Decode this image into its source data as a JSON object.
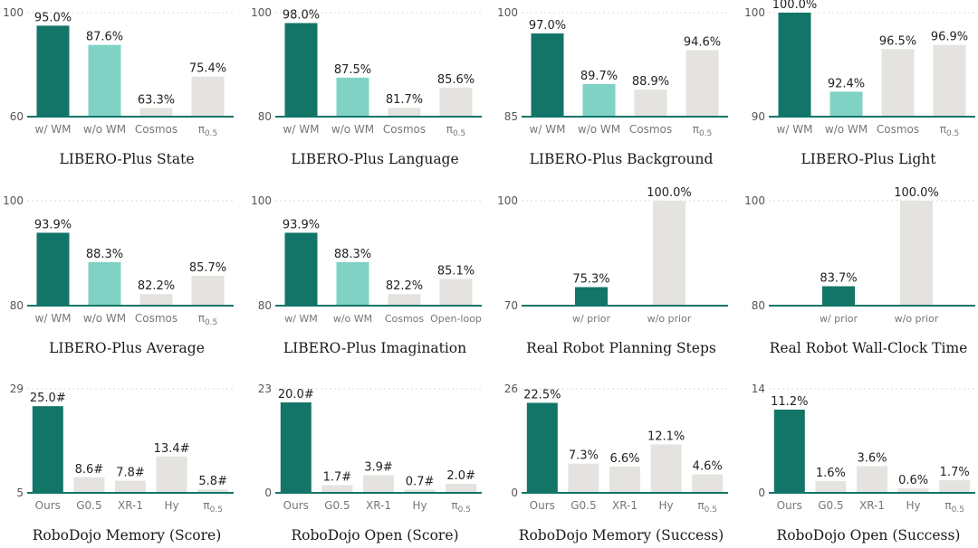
{
  "colors": {
    "ours": "#137567",
    "ablation": "#7fd2c4",
    "baseline": "#e4e3e0",
    "axis": "#137567",
    "gridline": "#d8d8d8"
  },
  "chart_data": [
    {
      "type": "bar",
      "title": "LIBERO-Plus State",
      "unit": "%",
      "ylim": [
        60,
        100
      ],
      "yticks": [
        "60",
        "100"
      ],
      "categories": [
        "w/ WM",
        "w/o WM",
        "Cosmos",
        "π0.5"
      ],
      "values": [
        95.0,
        87.6,
        63.3,
        75.4
      ],
      "labels": [
        "95.0%",
        "87.6%",
        "63.3%",
        "75.4%"
      ],
      "kinds": [
        "ours",
        "ablation",
        "baseline",
        "baseline"
      ]
    },
    {
      "type": "bar",
      "title": "LIBERO-Plus Language",
      "unit": "%",
      "ylim": [
        80,
        100
      ],
      "yticks": [
        "80",
        "100"
      ],
      "categories": [
        "w/ WM",
        "w/o WM",
        "Cosmos",
        "π0.5"
      ],
      "values": [
        98.0,
        87.5,
        81.7,
        85.6
      ],
      "labels": [
        "98.0%",
        "87.5%",
        "81.7%",
        "85.6%"
      ],
      "kinds": [
        "ours",
        "ablation",
        "baseline",
        "baseline"
      ]
    },
    {
      "type": "bar",
      "title": "LIBERO-Plus Background",
      "unit": "%",
      "ylim": [
        85,
        100
      ],
      "yticks": [
        "85",
        "100"
      ],
      "categories": [
        "w/ WM",
        "w/o WM",
        "Cosmos",
        "π0.5"
      ],
      "values": [
        97.0,
        89.7,
        88.9,
        94.6
      ],
      "labels": [
        "97.0%",
        "89.7%",
        "88.9%",
        "94.6%"
      ],
      "kinds": [
        "ours",
        "ablation",
        "baseline",
        "baseline"
      ]
    },
    {
      "type": "bar",
      "title": "LIBERO-Plus Light",
      "unit": "%",
      "ylim": [
        90,
        100
      ],
      "yticks": [
        "90",
        "100"
      ],
      "categories": [
        "w/ WM",
        "w/o WM",
        "Cosmos",
        "π0.5"
      ],
      "values": [
        100.0,
        92.4,
        96.5,
        96.9
      ],
      "labels": [
        "100.0%",
        "92.4%",
        "96.5%",
        "96.9%"
      ],
      "kinds": [
        "ours",
        "ablation",
        "baseline",
        "baseline"
      ]
    },
    {
      "type": "bar",
      "title": "LIBERO-Plus Average",
      "unit": "%",
      "ylim": [
        80,
        100
      ],
      "yticks": [
        "80",
        "100"
      ],
      "categories": [
        "w/ WM",
        "w/o WM",
        "Cosmos",
        "π0.5"
      ],
      "values": [
        93.9,
        88.3,
        82.2,
        85.7
      ],
      "labels": [
        "93.9%",
        "88.3%",
        "82.2%",
        "85.7%"
      ],
      "kinds": [
        "ours",
        "ablation",
        "baseline",
        "baseline"
      ]
    },
    {
      "type": "bar",
      "title": "LIBERO-Plus Imagination",
      "unit": "%",
      "ylim": [
        80,
        100
      ],
      "yticks": [
        "80",
        "100"
      ],
      "categories": [
        "w/ WM",
        "w/o WM",
        "Cosmos",
        "Open-loop"
      ],
      "values": [
        93.9,
        88.3,
        82.2,
        85.1
      ],
      "labels": [
        "93.9%",
        "88.3%",
        "82.2%",
        "85.1%"
      ],
      "kinds": [
        "ours",
        "ablation",
        "baseline",
        "baseline"
      ]
    },
    {
      "type": "bar",
      "title": "Real Robot Planning Steps",
      "unit": "%",
      "ylim": [
        70,
        100
      ],
      "yticks": [
        "70",
        "100"
      ],
      "categories": [
        "w/ prior",
        "w/o prior"
      ],
      "values": [
        75.3,
        100.0
      ],
      "labels": [
        "75.3%",
        "100.0%"
      ],
      "kinds": [
        "ours",
        "baseline"
      ]
    },
    {
      "type": "bar",
      "title": "Real Robot Wall-Clock Time",
      "unit": "%",
      "ylim": [
        80,
        100
      ],
      "yticks": [
        "80",
        "100"
      ],
      "categories": [
        "w/ prior",
        "w/o prior"
      ],
      "values": [
        83.7,
        100.0
      ],
      "labels": [
        "83.7%",
        "100.0%"
      ],
      "kinds": [
        "ours",
        "baseline"
      ]
    },
    {
      "type": "bar",
      "title": "RoboDojo Memory (Score)",
      "unit": "#",
      "ylim": [
        5,
        29
      ],
      "yticks": [
        "5",
        "29"
      ],
      "categories": [
        "Ours",
        "G0.5",
        "XR-1",
        "Hy",
        "π0.5"
      ],
      "values": [
        25.0,
        8.6,
        7.8,
        13.4,
        5.8
      ],
      "labels": [
        "25.0#",
        "8.6#",
        "7.8#",
        "13.4#",
        "5.8#"
      ],
      "kinds": [
        "ours",
        "baseline",
        "baseline",
        "baseline",
        "baseline"
      ]
    },
    {
      "type": "bar",
      "title": "RoboDojo Open (Score)",
      "unit": "#",
      "ylim": [
        0,
        23
      ],
      "yticks": [
        "0",
        "23"
      ],
      "categories": [
        "Ours",
        "G0.5",
        "XR-1",
        "Hy",
        "π0.5"
      ],
      "values": [
        20.0,
        1.7,
        3.9,
        0.7,
        2.0
      ],
      "labels": [
        "20.0#",
        "1.7#",
        "3.9#",
        "0.7#",
        "2.0#"
      ],
      "kinds": [
        "ours",
        "baseline",
        "baseline",
        "baseline",
        "baseline"
      ]
    },
    {
      "type": "bar",
      "title": "RoboDojo Memory (Success)",
      "unit": "%",
      "ylim": [
        0,
        26
      ],
      "yticks": [
        "0",
        "26"
      ],
      "categories": [
        "Ours",
        "G0.5",
        "XR-1",
        "Hy",
        "π0.5"
      ],
      "values": [
        22.5,
        7.3,
        6.6,
        12.1,
        4.6
      ],
      "labels": [
        "22.5%",
        "7.3%",
        "6.6%",
        "12.1%",
        "4.6%"
      ],
      "kinds": [
        "ours",
        "baseline",
        "baseline",
        "baseline",
        "baseline"
      ]
    },
    {
      "type": "bar",
      "title": "RoboDojo Open (Success)",
      "unit": "%",
      "ylim": [
        0,
        14
      ],
      "yticks": [
        "0",
        "14"
      ],
      "categories": [
        "Ours",
        "G0.5",
        "XR-1",
        "Hy",
        "π0.5"
      ],
      "values": [
        11.2,
        1.6,
        3.6,
        0.6,
        1.7
      ],
      "labels": [
        "11.2%",
        "1.6%",
        "3.6%",
        "0.6%",
        "1.7%"
      ],
      "kinds": [
        "ours",
        "baseline",
        "baseline",
        "baseline",
        "baseline"
      ]
    }
  ]
}
